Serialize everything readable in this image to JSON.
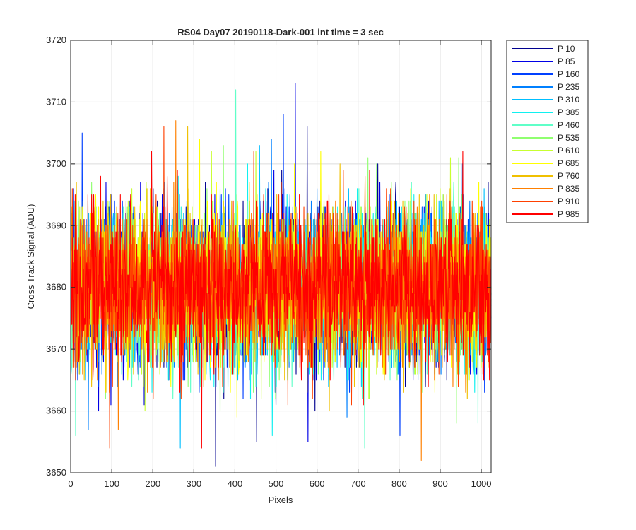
{
  "chart_data": {
    "type": "line",
    "title": "RS04 Day07 20190118-Dark-001 int time = 3 sec",
    "xlabel": "Pixels",
    "ylabel": "Cross Track Signal (ADU)",
    "xlim": [
      0,
      1024
    ],
    "ylim": [
      3650,
      3720
    ],
    "xticks": [
      0,
      100,
      200,
      300,
      400,
      500,
      600,
      700,
      800,
      900,
      1000
    ],
    "yticks": [
      3650,
      3660,
      3670,
      3680,
      3690,
      3700,
      3710,
      3720
    ],
    "grid": true,
    "legend_position": "outside-right",
    "series_note": "Each series contains 1024 noisy samples around 3680 ADU (std approx. 6 ADU), with occasional spikes reaching 3651-3713 ADU.",
    "series": [
      {
        "name": "P 10",
        "color": "#00008f",
        "mean": 3680,
        "std": 6.2,
        "min": 3651,
        "max": 3706
      },
      {
        "name": "P 85",
        "color": "#0000e6",
        "mean": 3680,
        "std": 6.2,
        "min": 3655,
        "max": 3713
      },
      {
        "name": "P 160",
        "color": "#0040ff",
        "mean": 3680,
        "std": 6.0,
        "min": 3656,
        "max": 3708
      },
      {
        "name": "P 235",
        "color": "#0080ff",
        "mean": 3680,
        "std": 6.0,
        "min": 3657,
        "max": 3704
      },
      {
        "name": "P 310",
        "color": "#00bfff",
        "mean": 3680,
        "std": 6.0,
        "min": 3654,
        "max": 3703
      },
      {
        "name": "P 385",
        "color": "#10f0f0",
        "mean": 3680,
        "std": 6.0,
        "min": 3656,
        "max": 3700
      },
      {
        "name": "P 460",
        "color": "#5fffc8",
        "mean": 3680,
        "std": 6.0,
        "min": 3654,
        "max": 3712
      },
      {
        "name": "P 535",
        "color": "#90ff70",
        "mean": 3680,
        "std": 6.0,
        "min": 3658,
        "max": 3703
      },
      {
        "name": "P 610",
        "color": "#c8ff30",
        "mean": 3680,
        "std": 6.0,
        "min": 3660,
        "max": 3702
      },
      {
        "name": "P 685",
        "color": "#ffff00",
        "mean": 3680,
        "std": 6.0,
        "min": 3659,
        "max": 3704
      },
      {
        "name": "P 760",
        "color": "#f0c000",
        "mean": 3680,
        "std": 6.0,
        "min": 3660,
        "max": 3706
      },
      {
        "name": "P 835",
        "color": "#ff8000",
        "mean": 3680,
        "std": 6.0,
        "min": 3652,
        "max": 3707
      },
      {
        "name": "P 910",
        "color": "#ff4000",
        "mean": 3680,
        "std": 6.0,
        "min": 3654,
        "max": 3706
      },
      {
        "name": "P 985",
        "color": "#ff0000",
        "mean": 3680,
        "std": 6.0,
        "min": 3654,
        "max": 3702
      }
    ]
  }
}
